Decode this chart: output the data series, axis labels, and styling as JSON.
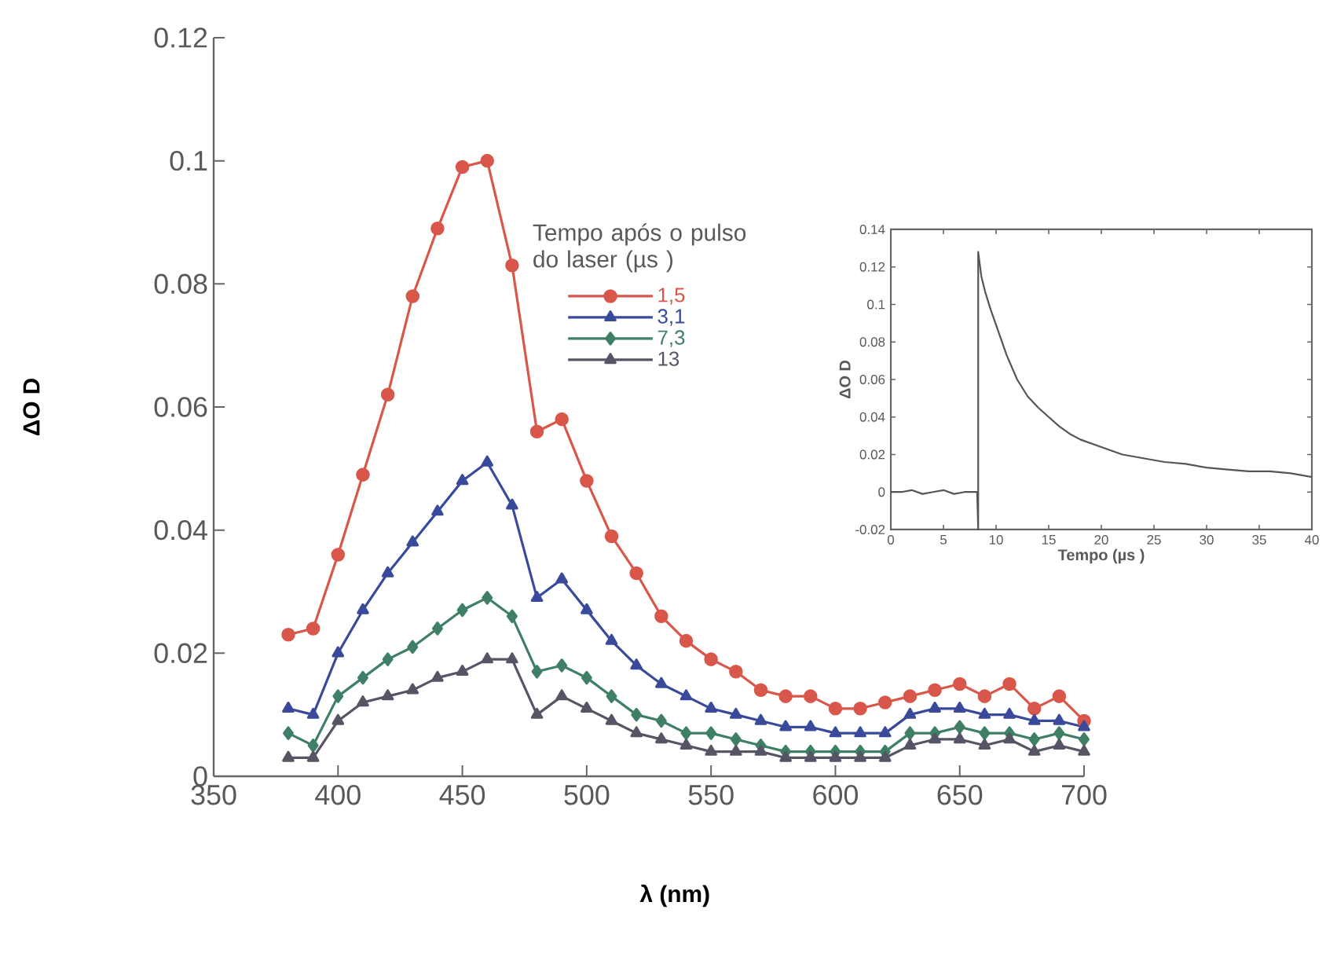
{
  "chart_data": [
    {
      "type": "line",
      "xlabel": "λ (nm)",
      "ylabel": "ΔO D",
      "legend_title": "Tempo após o pulso do laser (µs )",
      "legend": "top",
      "x": [
        380,
        390,
        400,
        410,
        420,
        430,
        440,
        450,
        460,
        470,
        480,
        490,
        500,
        510,
        520,
        530,
        540,
        550,
        560,
        570,
        580,
        590,
        600,
        610,
        620,
        630,
        640,
        650,
        660,
        670,
        680,
        690,
        700
      ],
      "series": [
        {
          "name": "1,5",
          "color": "#d9574a",
          "marker": "circle",
          "values": [
            0.023,
            0.024,
            0.036,
            0.049,
            0.062,
            0.078,
            0.089,
            0.099,
            0.1,
            0.083,
            0.056,
            0.058,
            0.048,
            0.039,
            0.033,
            0.026,
            0.022,
            0.019,
            0.017,
            0.014,
            0.013,
            0.013,
            0.011,
            0.011,
            0.012,
            0.013,
            0.014,
            0.015,
            0.013,
            0.015,
            0.011,
            0.013,
            0.009
          ]
        },
        {
          "name": "3,1",
          "color": "#3a4a9a",
          "marker": "triangle",
          "values": [
            0.011,
            0.01,
            0.02,
            0.027,
            0.033,
            0.038,
            0.043,
            0.048,
            0.051,
            0.044,
            0.029,
            0.032,
            0.027,
            0.022,
            0.018,
            0.015,
            0.013,
            0.011,
            0.01,
            0.009,
            0.008,
            0.008,
            0.007,
            0.007,
            0.007,
            0.01,
            0.011,
            0.011,
            0.01,
            0.01,
            0.009,
            0.009,
            0.008
          ]
        },
        {
          "name": "7,3",
          "color": "#3f7f66",
          "marker": "diamond",
          "values": [
            0.007,
            0.005,
            0.013,
            0.016,
            0.019,
            0.021,
            0.024,
            0.027,
            0.029,
            0.026,
            0.017,
            0.018,
            0.016,
            0.013,
            0.01,
            0.009,
            0.007,
            0.007,
            0.006,
            0.005,
            0.004,
            0.004,
            0.004,
            0.004,
            0.004,
            0.007,
            0.007,
            0.008,
            0.007,
            0.007,
            0.006,
            0.007,
            0.006
          ]
        },
        {
          "name": "13",
          "color": "#555566",
          "marker": "triangle-down",
          "values": [
            0.003,
            0.003,
            0.009,
            0.012,
            0.013,
            0.014,
            0.016,
            0.017,
            0.019,
            0.019,
            0.01,
            0.013,
            0.011,
            0.009,
            0.007,
            0.006,
            0.005,
            0.004,
            0.004,
            0.004,
            0.003,
            0.003,
            0.003,
            0.003,
            0.003,
            0.005,
            0.006,
            0.006,
            0.005,
            0.006,
            0.004,
            0.005,
            0.004
          ]
        }
      ],
      "xlim": [
        350,
        700
      ],
      "ylim": [
        0,
        0.12
      ],
      "xticks": [
        350,
        400,
        450,
        500,
        550,
        600,
        650,
        700
      ],
      "yticks": [
        0,
        0.02,
        0.04,
        0.06,
        0.08,
        0.1,
        0.12
      ]
    },
    {
      "type": "line",
      "xlabel": "Tempo (µs )",
      "ylabel": "ΔO D",
      "x": [
        0,
        1,
        2,
        3,
        4,
        5,
        6,
        7,
        8.2,
        8.3,
        8.3,
        8.6,
        9,
        9.5,
        10,
        11,
        12,
        13,
        14,
        15,
        16,
        17,
        18,
        20,
        22,
        24,
        26,
        28,
        30,
        32,
        34,
        36,
        38,
        40
      ],
      "series": [
        {
          "color": "#555555",
          "values": [
            0,
            0,
            0.001,
            -0.001,
            0,
            0.001,
            -0.001,
            0,
            0,
            -0.02,
            0.128,
            0.115,
            0.106,
            0.097,
            0.089,
            0.073,
            0.06,
            0.051,
            0.045,
            0.04,
            0.035,
            0.031,
            0.028,
            0.024,
            0.02,
            0.018,
            0.016,
            0.015,
            0.013,
            0.012,
            0.011,
            0.011,
            0.01,
            0.008
          ]
        }
      ],
      "xlim": [
        0,
        40
      ],
      "ylim": [
        -0.02,
        0.14
      ],
      "xticks": [
        0,
        5,
        10,
        15,
        20,
        25,
        30,
        35,
        40
      ],
      "yticks": [
        -0.02,
        0,
        0.02,
        0.04,
        0.06,
        0.08,
        0.1,
        0.12,
        0.14
      ]
    }
  ]
}
